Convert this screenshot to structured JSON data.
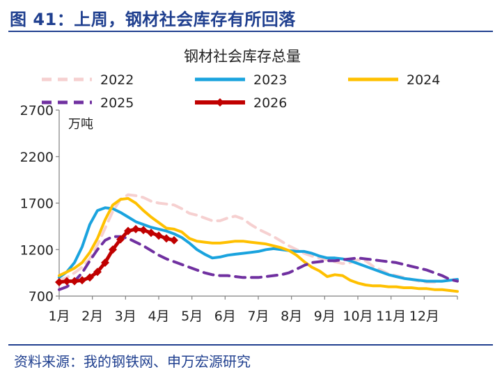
{
  "header": {
    "figure_title": "图 41：上周，钢材社会库存有所回落"
  },
  "footer": {
    "source": "资料来源：我的钢铁网、申万宏源研究"
  },
  "colors": {
    "brand": "#1f3f8f"
  },
  "chart_data": {
    "type": "line",
    "title": "钢材社会库存总量",
    "ylabel": "万吨",
    "xlabel": "",
    "ylim": [
      700,
      2700
    ],
    "y_ticks": [
      700,
      1200,
      1700,
      2200,
      2700
    ],
    "x_ticks": [
      "1月",
      "2月",
      "3月",
      "4月",
      "5月",
      "6月",
      "7月",
      "8月",
      "9月",
      "10月",
      "11月",
      "12月"
    ],
    "x_unit": "week",
    "xlim": [
      1,
      53
    ],
    "legend_position": "top",
    "grid": false,
    "series": [
      {
        "name": "2022",
        "color": "#f6d0d0",
        "dash": "14,9",
        "width": 4,
        "marker": false,
        "x": [
          1,
          2,
          3,
          4,
          5,
          6,
          7,
          8,
          9,
          10,
          11,
          12,
          13,
          14,
          15,
          16,
          17,
          18,
          19,
          20,
          21,
          22,
          23,
          24,
          25,
          26,
          27,
          28,
          29,
          30,
          31,
          32,
          33,
          34,
          35,
          36,
          37,
          38,
          39,
          40,
          41,
          42,
          43,
          44,
          45,
          46,
          47,
          48,
          49,
          50,
          51,
          52
        ],
        "y": [
          870,
          900,
          950,
          1010,
          1100,
          1250,
          1430,
          1610,
          1740,
          1790,
          1780,
          1760,
          1720,
          1700,
          1690,
          1680,
          1640,
          1590,
          1570,
          1540,
          1510,
          1510,
          1540,
          1560,
          1530,
          1470,
          1420,
          1380,
          1340,
          1290,
          1240,
          1200,
          1160,
          1130,
          1110,
          1090,
          1070,
          1050,
          1060,
          1090,
          1080,
          1020,
          980,
          940,
          920,
          900,
          880,
          860,
          850,
          850,
          860,
          870
        ]
      },
      {
        "name": "2023",
        "color": "#1aa3de",
        "dash": "",
        "width": 4,
        "marker": false,
        "x": [
          1,
          2,
          3,
          4,
          5,
          6,
          7,
          8,
          9,
          10,
          11,
          12,
          13,
          14,
          15,
          16,
          17,
          18,
          19,
          20,
          21,
          22,
          23,
          24,
          25,
          26,
          27,
          28,
          29,
          30,
          31,
          32,
          33,
          34,
          35,
          36,
          37,
          38,
          39,
          40,
          41,
          42,
          43,
          44,
          45,
          46,
          47,
          48,
          49,
          50,
          51,
          52,
          53
        ],
        "y": [
          900,
          960,
          1060,
          1230,
          1470,
          1620,
          1650,
          1640,
          1600,
          1550,
          1500,
          1470,
          1440,
          1420,
          1400,
          1370,
          1330,
          1270,
          1200,
          1150,
          1110,
          1120,
          1140,
          1150,
          1160,
          1170,
          1180,
          1200,
          1210,
          1200,
          1190,
          1180,
          1180,
          1160,
          1130,
          1110,
          1110,
          1100,
          1080,
          1050,
          1020,
          990,
          960,
          930,
          910,
          890,
          880,
          870,
          860,
          860,
          860,
          870,
          880
        ]
      },
      {
        "name": "2024",
        "color": "#ffc000",
        "dash": "",
        "width": 4,
        "marker": false,
        "x": [
          1,
          2,
          3,
          4,
          5,
          6,
          7,
          8,
          9,
          10,
          11,
          12,
          13,
          14,
          15,
          16,
          17,
          18,
          19,
          20,
          21,
          22,
          23,
          24,
          25,
          26,
          27,
          28,
          29,
          30,
          31,
          32,
          33,
          34,
          35,
          36,
          37,
          38,
          39,
          40,
          41,
          42,
          43,
          44,
          45,
          46,
          47,
          48,
          49,
          50,
          51,
          52,
          53
        ],
        "y": [
          920,
          960,
          1000,
          1060,
          1170,
          1320,
          1520,
          1680,
          1740,
          1750,
          1700,
          1620,
          1550,
          1490,
          1430,
          1420,
          1390,
          1320,
          1290,
          1280,
          1270,
          1270,
          1280,
          1290,
          1290,
          1280,
          1270,
          1260,
          1240,
          1220,
          1190,
          1140,
          1070,
          1010,
          970,
          910,
          930,
          920,
          870,
          840,
          820,
          810,
          810,
          800,
          800,
          790,
          790,
          780,
          780,
          770,
          770,
          760,
          750
        ]
      },
      {
        "name": "2025",
        "color": "#7030a0",
        "dash": "14,9",
        "width": 4,
        "marker": false,
        "x": [
          1,
          2,
          3,
          4,
          5,
          6,
          7,
          8,
          9,
          10,
          11,
          12,
          13,
          14,
          15,
          16,
          17,
          18,
          19,
          20,
          21,
          22,
          23,
          24,
          25,
          26,
          27,
          28,
          29,
          30,
          31,
          32,
          33,
          34,
          35,
          36,
          37,
          38,
          39,
          40,
          41,
          42,
          43,
          44,
          45,
          46,
          47,
          48,
          49,
          50,
          51,
          52,
          53
        ],
        "y": [
          770,
          800,
          860,
          950,
          1080,
          1200,
          1300,
          1340,
          1340,
          1320,
          1280,
          1240,
          1190,
          1140,
          1100,
          1070,
          1040,
          1010,
          980,
          950,
          930,
          920,
          920,
          910,
          900,
          900,
          900,
          910,
          920,
          930,
          950,
          990,
          1030,
          1060,
          1070,
          1080,
          1080,
          1090,
          1100,
          1110,
          1100,
          1090,
          1080,
          1070,
          1060,
          1040,
          1020,
          1000,
          980,
          950,
          920,
          880,
          860
        ]
      },
      {
        "name": "2026",
        "color": "#c00000",
        "dash": "",
        "width": 5,
        "marker": true,
        "x": [
          1,
          2,
          3,
          4,
          5,
          6,
          7,
          8,
          9,
          10,
          11,
          12,
          13,
          14,
          15,
          16
        ],
        "y": [
          850,
          860,
          860,
          870,
          900,
          960,
          1060,
          1200,
          1310,
          1400,
          1420,
          1410,
          1380,
          1350,
          1320,
          1300
        ]
      }
    ]
  }
}
